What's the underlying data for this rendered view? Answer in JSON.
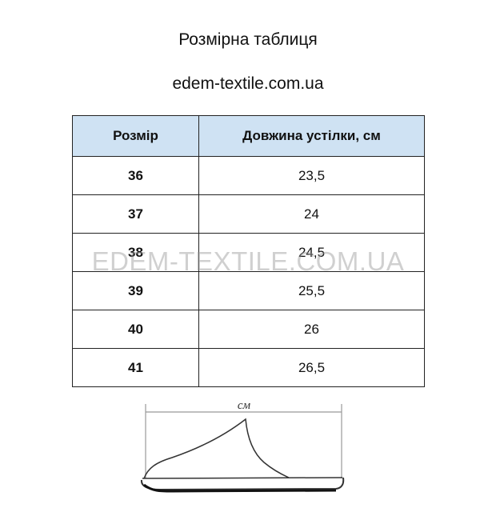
{
  "title": "Розмірна таблиця",
  "site": "edem-textile.com.ua",
  "table": {
    "headers": [
      "Розмір",
      "Довжина устілки, см"
    ],
    "rows": [
      [
        "36",
        "23,5"
      ],
      [
        "37",
        "24"
      ],
      [
        "38",
        "24,5"
      ],
      [
        "39",
        "25,5"
      ],
      [
        "40",
        "26"
      ],
      [
        "41",
        "26,5"
      ]
    ],
    "header_color": "#cfe2f3"
  },
  "watermark": "EDEM-TEXTILE.COM.UA",
  "diagram": {
    "unit_label": "см"
  }
}
